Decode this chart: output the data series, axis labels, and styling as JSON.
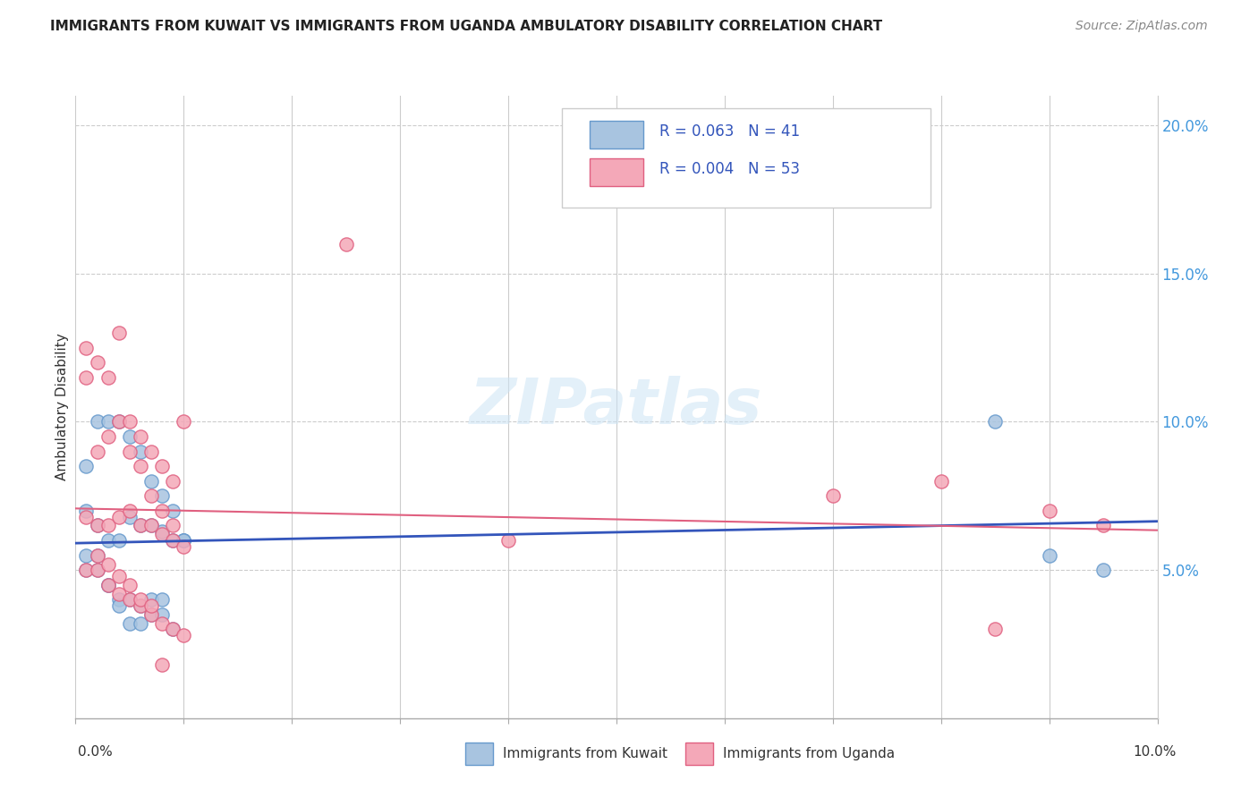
{
  "title": "IMMIGRANTS FROM KUWAIT VS IMMIGRANTS FROM UGANDA AMBULATORY DISABILITY CORRELATION CHART",
  "source": "Source: ZipAtlas.com",
  "ylabel": "Ambulatory Disability",
  "kuwait_color": "#a8c4e0",
  "kuwait_edge": "#6699cc",
  "uganda_color": "#f4a8b8",
  "uganda_edge": "#e06080",
  "kuwait_R": 0.063,
  "kuwait_N": 41,
  "uganda_R": 0.004,
  "uganda_N": 53,
  "legend_R_color": "#3355bb",
  "kuwait_line_color": "#3355bb",
  "uganda_line_color": "#e06080",
  "kuwait_scatter_x": [
    0.001,
    0.002,
    0.003,
    0.004,
    0.005,
    0.006,
    0.007,
    0.008,
    0.009,
    0.01,
    0.001,
    0.002,
    0.003,
    0.004,
    0.005,
    0.006,
    0.007,
    0.008,
    0.009,
    0.01,
    0.001,
    0.002,
    0.003,
    0.004,
    0.005,
    0.006,
    0.007,
    0.008,
    0.009,
    0.01,
    0.001,
    0.002,
    0.003,
    0.004,
    0.005,
    0.006,
    0.007,
    0.008,
    0.085,
    0.09,
    0.095
  ],
  "kuwait_scatter_y": [
    0.07,
    0.065,
    0.06,
    0.06,
    0.068,
    0.065,
    0.065,
    0.063,
    0.06,
    0.06,
    0.085,
    0.1,
    0.1,
    0.1,
    0.095,
    0.09,
    0.08,
    0.075,
    0.07,
    0.06,
    0.05,
    0.05,
    0.045,
    0.04,
    0.04,
    0.038,
    0.035,
    0.035,
    0.03,
    0.06,
    0.055,
    0.055,
    0.045,
    0.038,
    0.032,
    0.032,
    0.04,
    0.04,
    0.1,
    0.055,
    0.05
  ],
  "uganda_scatter_x": [
    0.001,
    0.002,
    0.003,
    0.004,
    0.005,
    0.006,
    0.007,
    0.008,
    0.009,
    0.01,
    0.001,
    0.002,
    0.003,
    0.004,
    0.005,
    0.006,
    0.007,
    0.008,
    0.009,
    0.01,
    0.001,
    0.002,
    0.003,
    0.004,
    0.005,
    0.006,
    0.007,
    0.008,
    0.009,
    0.025,
    0.001,
    0.002,
    0.003,
    0.004,
    0.005,
    0.006,
    0.007,
    0.008,
    0.009,
    0.01,
    0.002,
    0.003,
    0.004,
    0.005,
    0.006,
    0.007,
    0.008,
    0.04,
    0.07,
    0.08,
    0.085,
    0.09,
    0.095
  ],
  "uganda_scatter_y": [
    0.068,
    0.065,
    0.065,
    0.068,
    0.07,
    0.065,
    0.065,
    0.062,
    0.06,
    0.058,
    0.115,
    0.09,
    0.095,
    0.1,
    0.1,
    0.095,
    0.09,
    0.085,
    0.08,
    0.1,
    0.125,
    0.12,
    0.115,
    0.13,
    0.09,
    0.085,
    0.075,
    0.07,
    0.065,
    0.16,
    0.05,
    0.05,
    0.045,
    0.042,
    0.04,
    0.038,
    0.035,
    0.032,
    0.03,
    0.028,
    0.055,
    0.052,
    0.048,
    0.045,
    0.04,
    0.038,
    0.018,
    0.06,
    0.075,
    0.08,
    0.03,
    0.07,
    0.065
  ]
}
